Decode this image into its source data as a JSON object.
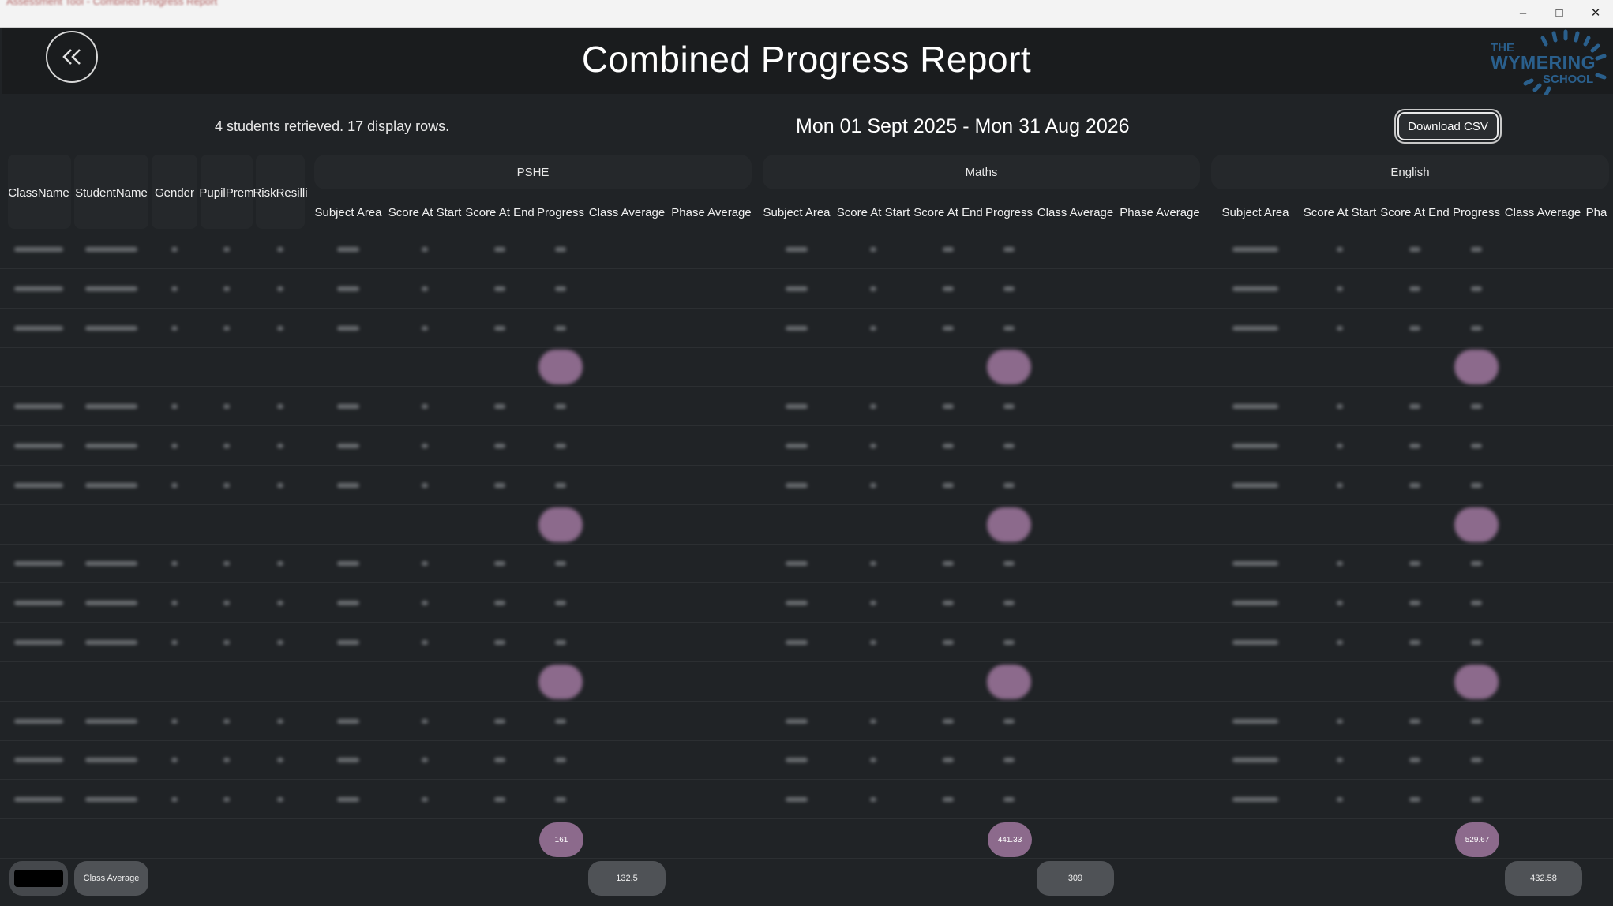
{
  "window": {
    "title": "Assessment Tool - Combined Progress Report",
    "controls": [
      "minimize-icon",
      "maximize-icon",
      "close-icon"
    ]
  },
  "header": {
    "back_icon": "double-chevron-left-icon",
    "title": "Combined Progress Report",
    "logo": {
      "line1": "THE",
      "line2": "WYMERING",
      "line3": "SCHOOL"
    }
  },
  "toolbar": {
    "status": "4 students retrieved. 17 display rows.",
    "date_range": "Mon 01 Sept 2025 - Mon 31 Aug 2026",
    "download_label": "Download CSV"
  },
  "fixed_columns": [
    "ClassName",
    "StudentName",
    "Gender",
    "PupilPrem",
    "RiskResilli"
  ],
  "subjects": [
    {
      "name": "PSHE",
      "columns": [
        "Subject Area",
        "Score At Start",
        "Score At End",
        "Progress",
        "Class Average",
        "Phase Average"
      ]
    },
    {
      "name": "Maths",
      "columns": [
        "Subject Area",
        "Score At Start",
        "Score At End",
        "Progress",
        "Class Average",
        "Phase Average"
      ]
    },
    {
      "name": "English",
      "columns": [
        "Subject Area",
        "Score At Start",
        "Score At End",
        "Progress",
        "Class Average",
        "Pha"
      ]
    }
  ],
  "totals": {
    "pshe_progress": "161",
    "maths_progress": "441.33",
    "english_progress": "529.67"
  },
  "footer": {
    "class_average_label": "Class Average",
    "pshe_class_average": "132.5",
    "maths_class_average": "309",
    "english_class_average": "432.58"
  }
}
